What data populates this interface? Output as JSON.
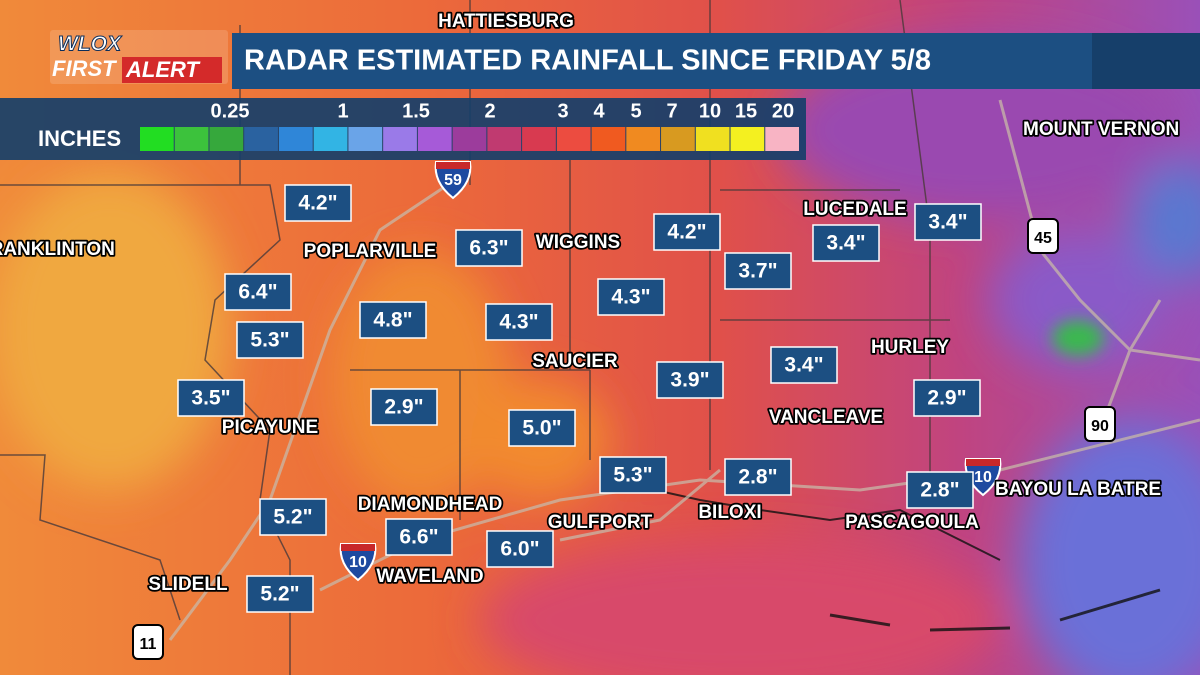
{
  "header": {
    "logo_top": "WLOX",
    "logo_first": "FIRST",
    "logo_alert": "ALERT",
    "title": "RADAR ESTIMATED RAINFALL SINCE FRIDAY 5/8"
  },
  "legend": {
    "unit": "INCHES",
    "labels": [
      "0.25",
      "1",
      "1.5",
      "2",
      "3",
      "4",
      "5",
      "7",
      "10",
      "15",
      "20"
    ]
  },
  "cities": [
    "HATTIESBURG",
    "MOUNT VERNON",
    "FRANKLINTON",
    "LUCEDALE",
    "POPLARVILLE",
    "WIGGINS",
    "SAUCIER",
    "HURLEY",
    "VANCLEAVE",
    "PICAYUNE",
    "DIAMONDHEAD",
    "GULFPORT",
    "BILOXI",
    "PASCAGOULA",
    "BAYOU LA BATRE",
    "WAVELAND",
    "SLIDELL"
  ],
  "rainfall": [
    "4.2\"",
    "6.4\"",
    "5.3\"",
    "4.8\"",
    "6.3\"",
    "4.3\"",
    "4.2\"",
    "4.3\"",
    "3.7\"",
    "3.4\"",
    "3.4\"",
    "3.5\"",
    "2.9\"",
    "5.0\"",
    "3.9\"",
    "3.4\"",
    "2.9\"",
    "5.3\"",
    "2.8\"",
    "2.8\"",
    "5.2\"",
    "6.6\"",
    "6.0\"",
    "5.2\""
  ],
  "shields": [
    "59",
    "10",
    "10",
    "45",
    "90",
    "11"
  ]
}
